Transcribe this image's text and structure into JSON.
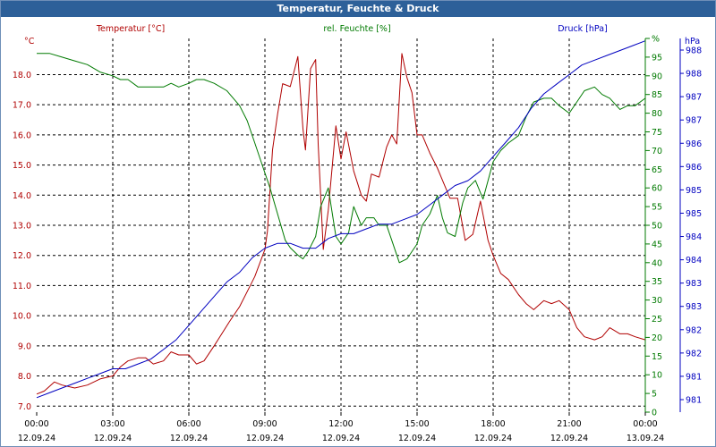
{
  "window": {
    "title": "Temperatur, Feuchte & Druck"
  },
  "colors": {
    "temperature": "#b00000",
    "humidity": "#007a00",
    "pressure": "#0000c0",
    "titlebar": "#2d6099"
  },
  "chart_data": {
    "type": "line",
    "title": "Temperatur, Feuchte & Druck",
    "x_ticks": [
      {
        "time": "00:00",
        "date": "12.09.24"
      },
      {
        "time": "03:00",
        "date": "12.09.24"
      },
      {
        "time": "06:00",
        "date": "12.09.24"
      },
      {
        "time": "09:00",
        "date": "12.09.24"
      },
      {
        "time": "12:00",
        "date": "12.09.24"
      },
      {
        "time": "15:00",
        "date": "12.09.24"
      },
      {
        "time": "18:00",
        "date": "12.09.24"
      },
      {
        "time": "21:00",
        "date": "12.09.24"
      },
      {
        "time": "00:00",
        "date": "13.09.24"
      }
    ],
    "x_range_hours": [
      0,
      24
    ],
    "axes": {
      "temperature": {
        "label": "Temperatur [°C]",
        "unit_label": "°C",
        "range": [
          6.8,
          19.2
        ],
        "ticks": [
          "7.0",
          "8.0",
          "9.0",
          "10.0",
          "11.0",
          "12.0",
          "13.0",
          "14.0",
          "15.0",
          "16.0",
          "17.0",
          "18.0"
        ]
      },
      "humidity": {
        "label": "rel. Feuchte [%]",
        "unit_label": "%",
        "range": [
          0,
          100
        ],
        "ticks": [
          "0",
          "5",
          "10",
          "15",
          "20",
          "25",
          "30",
          "35",
          "40",
          "45",
          "50",
          "55",
          "60",
          "65",
          "70",
          "75",
          "80",
          "85",
          "90",
          "95",
          "%"
        ]
      },
      "pressure": {
        "label": "Druck [hPa]",
        "unit_label": "hPa",
        "range": [
          980.8,
          988.55
        ],
        "ticks": [
          "981",
          "981",
          "982",
          "982",
          "983",
          "983",
          "984",
          "984",
          "985",
          "985",
          "986",
          "986",
          "987",
          "987",
          "988",
          "988"
        ]
      }
    },
    "series": [
      {
        "name": "Temperatur",
        "axis": "temperature",
        "color": "#b00000",
        "x": [
          0,
          0.3,
          0.7,
          1,
          1.5,
          2,
          2.5,
          3,
          3.3,
          3.6,
          4,
          4.3,
          4.6,
          5,
          5.3,
          5.6,
          6,
          6.3,
          6.6,
          7,
          7.3,
          7.6,
          8,
          8.3,
          8.6,
          9,
          9.1,
          9.3,
          9.5,
          9.7,
          10,
          10.3,
          10.5,
          10.6,
          10.8,
          11,
          11.1,
          11.3,
          11.5,
          11.8,
          12,
          12.2,
          12.5,
          12.8,
          13,
          13.2,
          13.5,
          13.8,
          14,
          14.2,
          14.4,
          14.6,
          14.8,
          15,
          15.2,
          15.5,
          15.8,
          16,
          16.3,
          16.6,
          16.9,
          17.2,
          17.5,
          17.8,
          18,
          18.3,
          18.6,
          19,
          19.3,
          19.6,
          20,
          20.3,
          20.6,
          21,
          21.3,
          21.6,
          22,
          22.3,
          22.6,
          23,
          23.3,
          23.6,
          24
        ],
        "values": [
          7.4,
          7.5,
          7.8,
          7.7,
          7.6,
          7.7,
          7.9,
          8,
          8.3,
          8.5,
          8.6,
          8.6,
          8.4,
          8.5,
          8.8,
          8.7,
          8.7,
          8.4,
          8.5,
          9,
          9.4,
          9.8,
          10.3,
          10.8,
          11.3,
          12.2,
          12.8,
          15.5,
          16.7,
          17.7,
          17.6,
          18.6,
          16.2,
          15.5,
          18.2,
          18.5,
          15.7,
          12.2,
          13.5,
          16.3,
          15.2,
          16.1,
          14.8,
          14,
          13.8,
          14.7,
          14.6,
          15.6,
          16,
          15.7,
          18.7,
          17.9,
          17.4,
          16,
          16,
          15.4,
          14.9,
          14.5,
          13.9,
          13.9,
          12.5,
          12.7,
          13.8,
          12.5,
          12,
          11.4,
          11.2,
          10.7,
          10.4,
          10.2,
          10.5,
          10.4,
          10.5,
          10.2,
          9.6,
          9.3,
          9.2,
          9.3,
          9.6,
          9.4,
          9.4,
          9.3,
          9.2
        ]
      },
      {
        "name": "rel. Feuchte",
        "axis": "humidity",
        "color": "#007a00",
        "x": [
          0,
          0.5,
          1,
          1.5,
          2,
          2.5,
          3,
          3.3,
          3.6,
          4,
          4.5,
          5,
          5.3,
          5.6,
          6,
          6.3,
          6.6,
          7,
          7.5,
          8,
          8.3,
          8.6,
          9,
          9.2,
          9.5,
          9.8,
          10,
          10.3,
          10.5,
          10.7,
          11,
          11.2,
          11.5,
          11.8,
          12,
          12.3,
          12.5,
          12.8,
          13,
          13.3,
          13.5,
          13.8,
          14,
          14.3,
          14.6,
          15,
          15.2,
          15.5,
          15.8,
          16,
          16.2,
          16.5,
          16.8,
          17,
          17.3,
          17.6,
          18,
          18.3,
          18.6,
          19,
          19.3,
          19.6,
          20,
          20.3,
          20.6,
          21,
          21.3,
          21.6,
          22,
          22.3,
          22.6,
          23,
          23.3,
          23.6,
          24
        ],
        "values": [
          96,
          96,
          95,
          94,
          93,
          91,
          90,
          89,
          89,
          87,
          87,
          87,
          88,
          87,
          88,
          89,
          89,
          88,
          86,
          82,
          78,
          72,
          64,
          60,
          53,
          46,
          44,
          42,
          41,
          43,
          47,
          55,
          60,
          47,
          45,
          48,
          55,
          50,
          52,
          52,
          50,
          50,
          46,
          40,
          41,
          45,
          50,
          53,
          58,
          52,
          48,
          47,
          56,
          60,
          62,
          57,
          67,
          70,
          72,
          74,
          79,
          83,
          84,
          84,
          82,
          80,
          83,
          86,
          87,
          85,
          84,
          81,
          82,
          82,
          84
        ]
      },
      {
        "name": "Druck",
        "axis": "pressure",
        "color": "#0000c0",
        "x": [
          0,
          0.5,
          1,
          1.5,
          2,
          2.5,
          3,
          3.5,
          4,
          4.5,
          5,
          5.5,
          6,
          6.5,
          7,
          7.5,
          8,
          8.5,
          9,
          9.5,
          10,
          10.5,
          11,
          11.5,
          12,
          12.5,
          13,
          13.5,
          14,
          14.5,
          15,
          15.5,
          16,
          16.5,
          17,
          17.5,
          18,
          18.5,
          19,
          19.5,
          20,
          20.5,
          21,
          21.5,
          22,
          22.5,
          23,
          23.5,
          24
        ],
        "values": [
          981.1,
          981.2,
          981.3,
          981.4,
          981.5,
          981.6,
          981.7,
          981.7,
          981.8,
          981.9,
          982.1,
          982.3,
          982.6,
          982.9,
          983.2,
          983.5,
          983.7,
          984,
          984.2,
          984.3,
          984.3,
          984.2,
          984.2,
          984.4,
          984.5,
          984.5,
          984.6,
          984.7,
          984.7,
          984.8,
          984.9,
          985.1,
          985.3,
          985.5,
          985.6,
          985.8,
          986.1,
          986.4,
          986.7,
          987.1,
          987.4,
          987.6,
          987.8,
          988,
          988.1,
          988.2,
          988.3,
          988.4,
          988.5
        ]
      }
    ]
  }
}
